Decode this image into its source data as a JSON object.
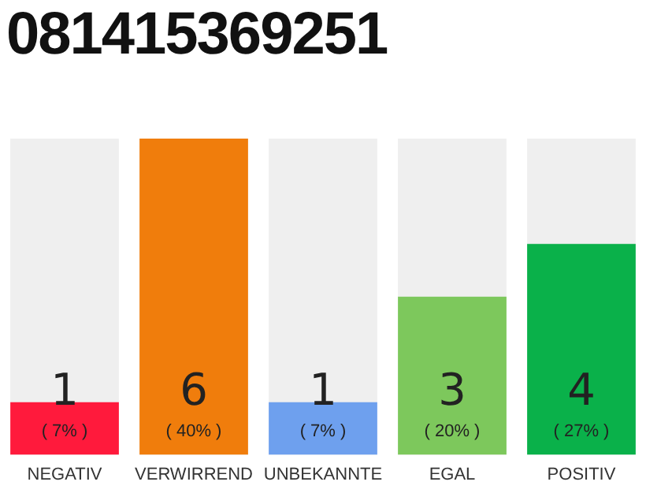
{
  "chart_data": {
    "type": "bar",
    "title": "081415369251",
    "categories": [
      "NEGATIV",
      "VERWIRREND",
      "UNBEKANNTE",
      "EGAL",
      "POSITIV"
    ],
    "values": [
      1,
      6,
      1,
      3,
      4
    ],
    "colors": [
      "#ff1a3c",
      "#f07d0c",
      "#6ea0ee",
      "#7dc85c",
      "#0ab14a"
    ],
    "data_labels": true,
    "annotations": [
      "( 7% )",
      "( 40% )",
      "( 7% )",
      "( 20% )",
      "( 27% )"
    ],
    "grid": false,
    "legend": false
  }
}
